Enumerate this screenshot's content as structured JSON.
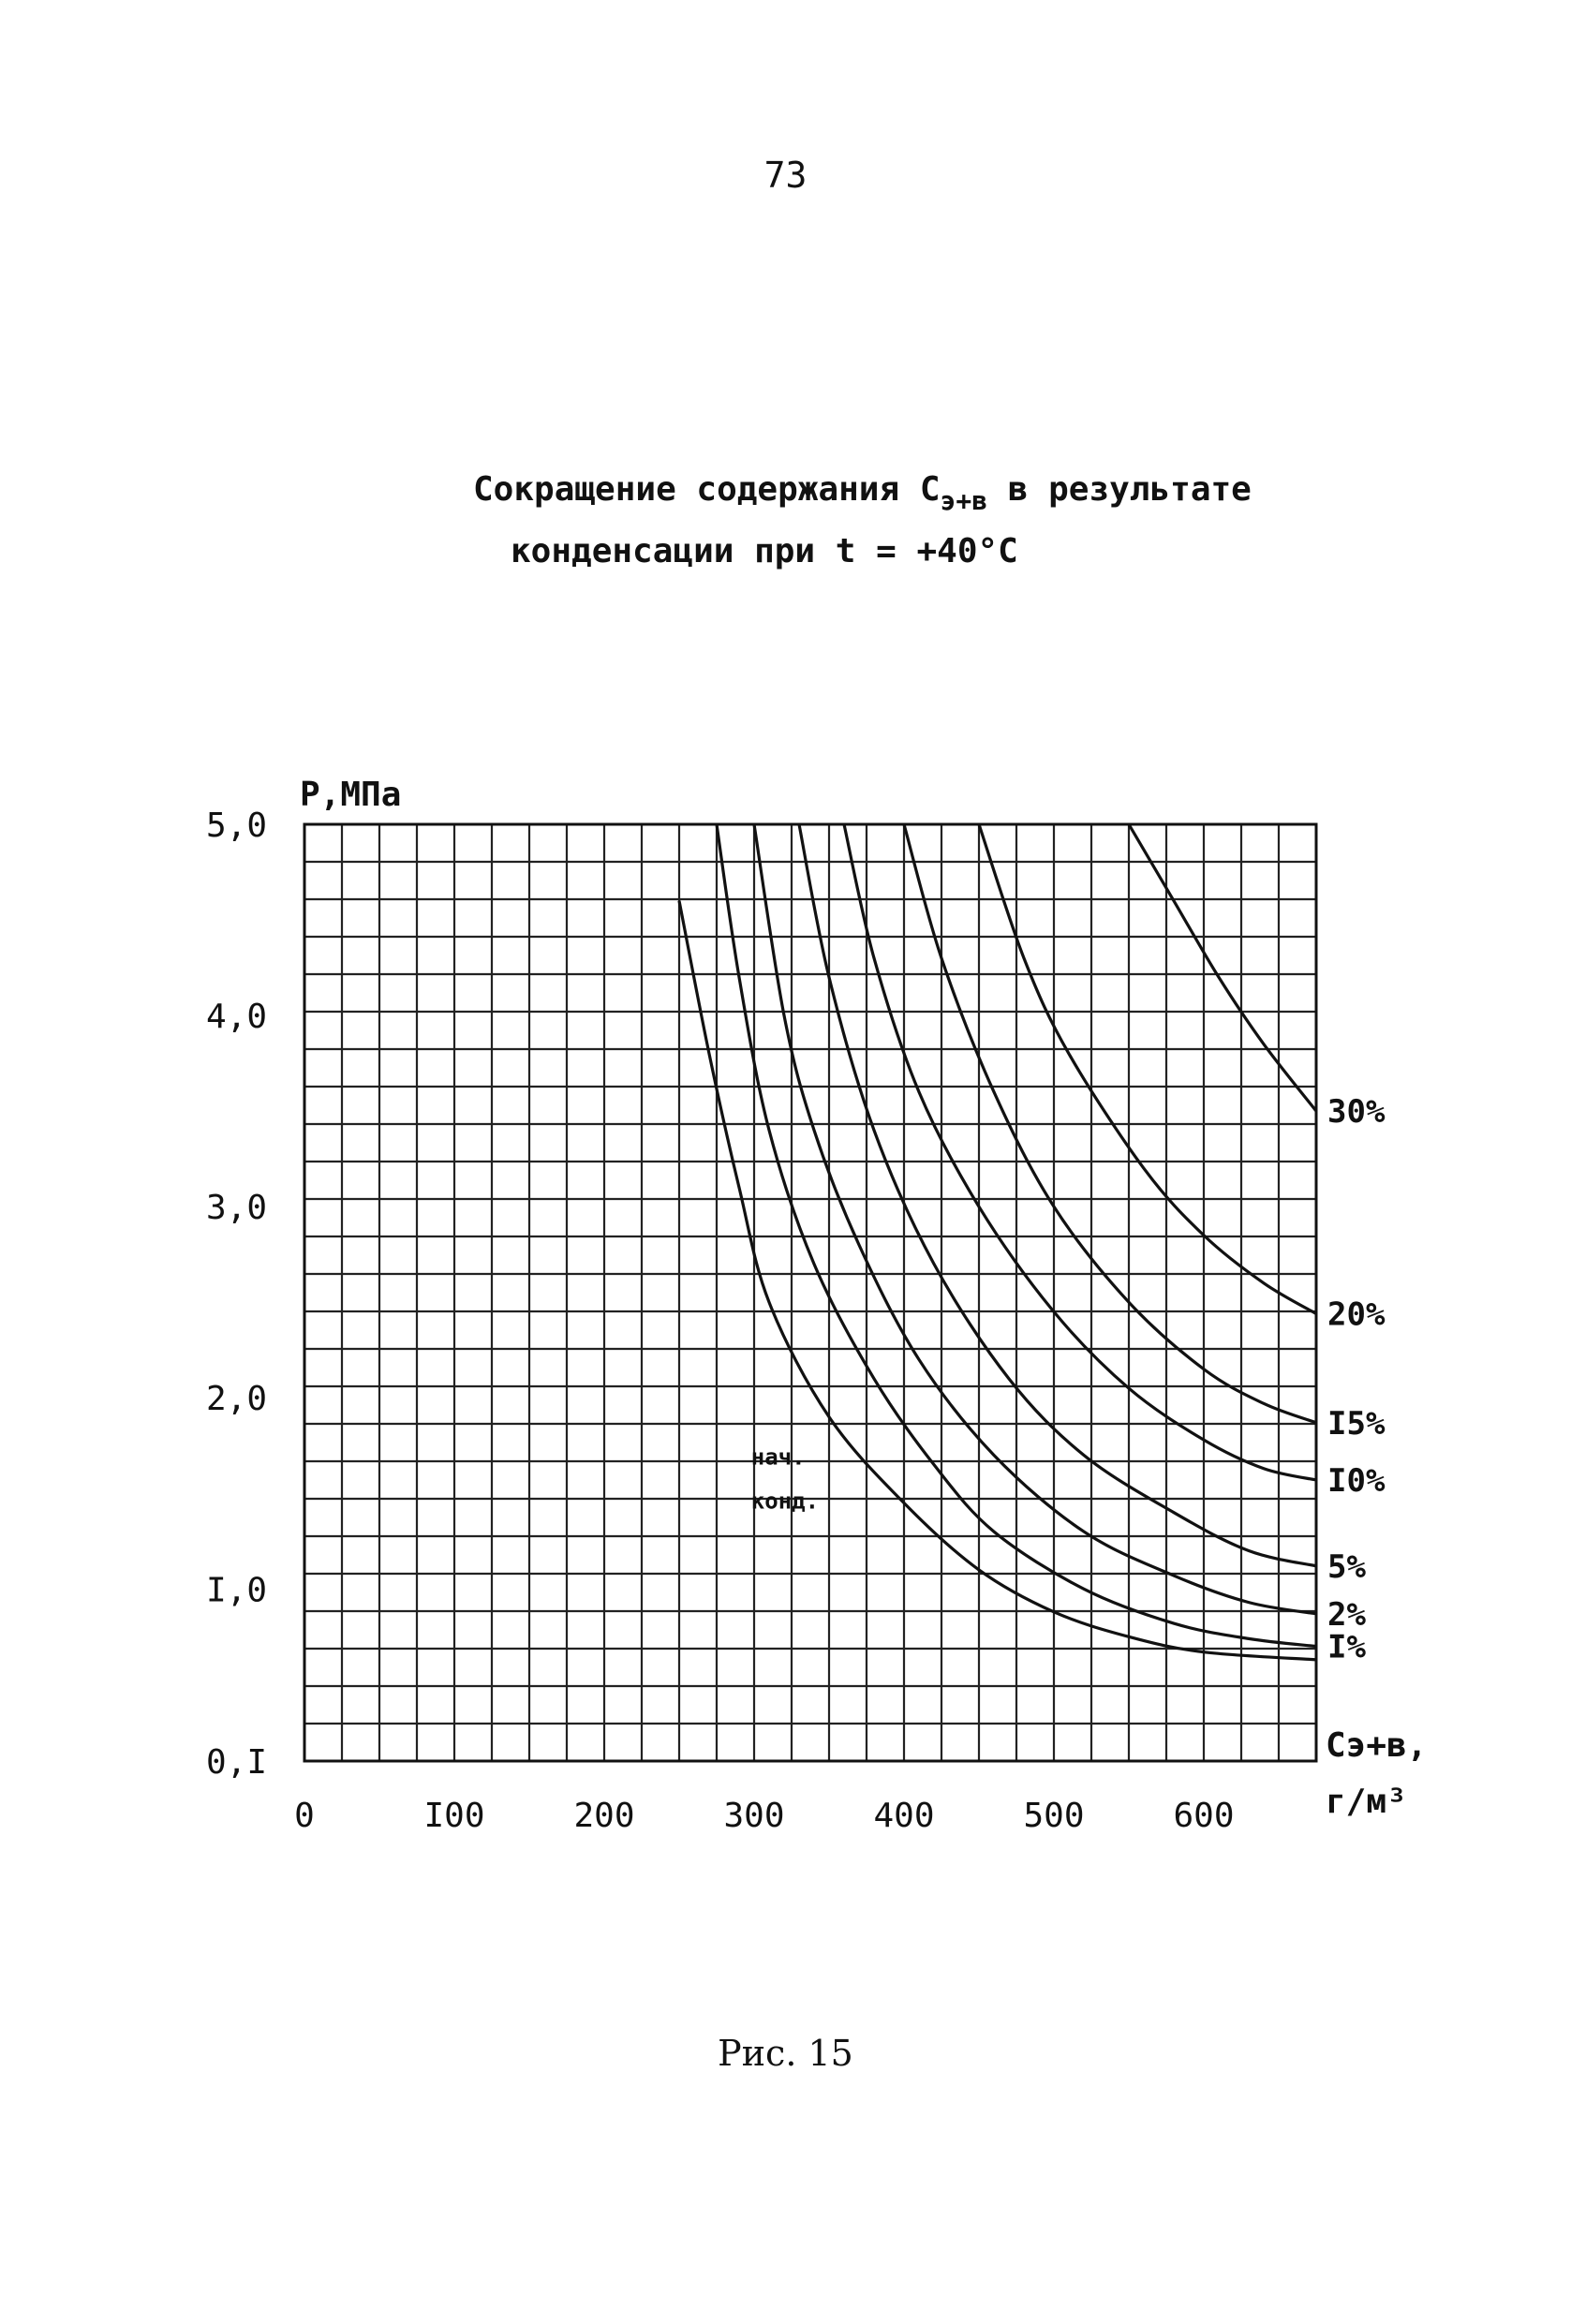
{
  "page": {
    "number": "73",
    "title_part1": "Сокращение содержания С",
    "title_sub": "э+в",
    "title_part2": " в результате",
    "title_line2": "конденсации при t = +40°С",
    "caption": "Рис. 15"
  },
  "chart_data": {
    "type": "line",
    "title": "Сокращение содержания Сэ+в в результате конденсации при t = +40°С",
    "ylabel": "Р,МПа",
    "xlabel_line1": "Сэ+в,",
    "xlabel_line2": "г/м³",
    "xlim": [
      0,
      675
    ],
    "ylim": [
      0.1,
      5.0
    ],
    "x_ticks": [
      0,
      100,
      200,
      300,
      400,
      500,
      600
    ],
    "x_tick_labels": [
      "0",
      "I00",
      "200",
      "300",
      "400",
      "500",
      "600"
    ],
    "y_ticks": [
      0.1,
      1.0,
      2.0,
      3.0,
      4.0,
      5.0
    ],
    "y_tick_labels": [
      "0,I",
      "I,0",
      "2,0",
      "3,0",
      "4,0",
      "5,0"
    ],
    "grid": true,
    "annotation_line1": "нач.",
    "annotation_line2": "конд.",
    "series": [
      {
        "name": "нач. конд.",
        "points": [
          [
            250,
            4.6
          ],
          [
            270,
            3.8
          ],
          [
            290,
            3.1
          ],
          [
            310,
            2.5
          ],
          [
            350,
            1.9
          ],
          [
            400,
            1.45
          ],
          [
            450,
            1.1
          ],
          [
            500,
            0.88
          ],
          [
            550,
            0.75
          ],
          [
            600,
            0.67
          ],
          [
            675,
            0.63
          ]
        ]
      },
      {
        "name": "1%",
        "points": [
          [
            275,
            5.0
          ],
          [
            290,
            4.2
          ],
          [
            310,
            3.4
          ],
          [
            340,
            2.7
          ],
          [
            380,
            2.1
          ],
          [
            420,
            1.65
          ],
          [
            460,
            1.3
          ],
          [
            520,
            1.0
          ],
          [
            580,
            0.82
          ],
          [
            630,
            0.74
          ],
          [
            675,
            0.7
          ]
        ]
      },
      {
        "name": "2%",
        "points": [
          [
            300,
            5.0
          ],
          [
            320,
            4.0
          ],
          [
            340,
            3.4
          ],
          [
            370,
            2.8
          ],
          [
            410,
            2.2
          ],
          [
            460,
            1.7
          ],
          [
            520,
            1.3
          ],
          [
            580,
            1.07
          ],
          [
            630,
            0.93
          ],
          [
            675,
            0.87
          ]
        ]
      },
      {
        "name": "5%",
        "points": [
          [
            330,
            5.0
          ],
          [
            350,
            4.2
          ],
          [
            380,
            3.4
          ],
          [
            420,
            2.7
          ],
          [
            470,
            2.1
          ],
          [
            520,
            1.7
          ],
          [
            580,
            1.4
          ],
          [
            630,
            1.2
          ],
          [
            675,
            1.12
          ]
        ]
      },
      {
        "name": "10%",
        "points": [
          [
            360,
            5.0
          ],
          [
            380,
            4.3
          ],
          [
            410,
            3.6
          ],
          [
            450,
            3.0
          ],
          [
            500,
            2.45
          ],
          [
            550,
            2.05
          ],
          [
            600,
            1.78
          ],
          [
            640,
            1.63
          ],
          [
            675,
            1.57
          ]
        ]
      },
      {
        "name": "15%",
        "points": [
          [
            400,
            5.0
          ],
          [
            425,
            4.3
          ],
          [
            460,
            3.6
          ],
          [
            500,
            3.0
          ],
          [
            550,
            2.5
          ],
          [
            600,
            2.15
          ],
          [
            640,
            1.97
          ],
          [
            675,
            1.87
          ]
        ]
      },
      {
        "name": "20%",
        "points": [
          [
            450,
            5.0
          ],
          [
            480,
            4.3
          ],
          [
            510,
            3.8
          ],
          [
            560,
            3.2
          ],
          [
            600,
            2.85
          ],
          [
            640,
            2.6
          ],
          [
            675,
            2.44
          ]
        ]
      },
      {
        "name": "30%",
        "points": [
          [
            550,
            5.0
          ],
          [
            580,
            4.6
          ],
          [
            610,
            4.2
          ],
          [
            640,
            3.85
          ],
          [
            675,
            3.5
          ]
        ]
      }
    ],
    "series_labels": [
      "I%",
      "2%",
      "5%",
      "I0%",
      "I5%",
      "20%",
      "30%"
    ]
  }
}
